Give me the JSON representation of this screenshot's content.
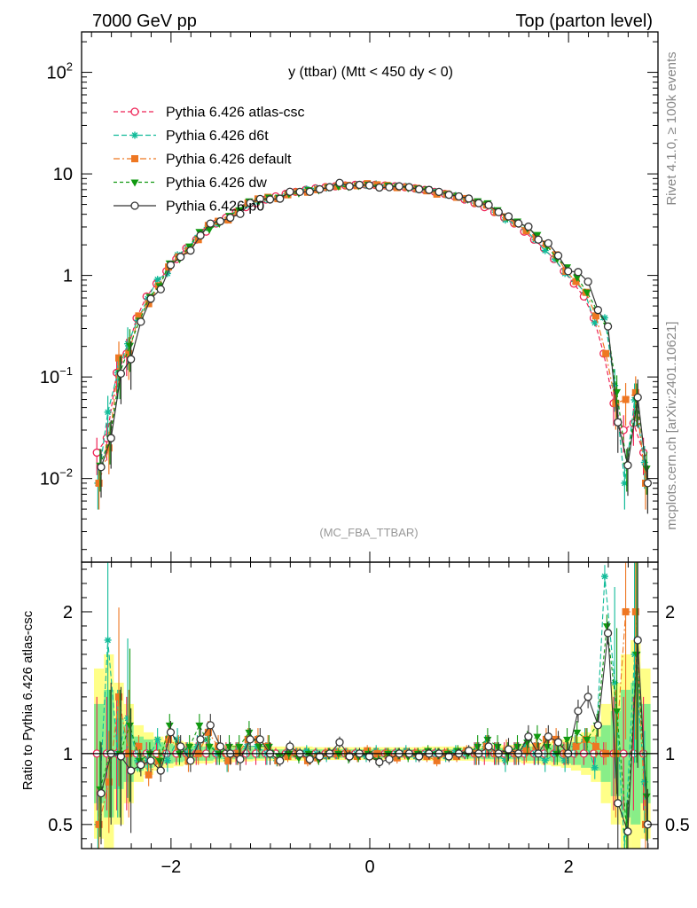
{
  "header": {
    "left": "7000 GeV pp",
    "right": "Top (parton level)"
  },
  "side": {
    "rivet": "Rivet 4.1.0, ≥ 100k events",
    "mcplots": "mcplots.cern.ch [arXiv:2401.10621]"
  },
  "plot_title": "y (ttbar) (Mtt < 450 dy < 0)",
  "watermark": "(MC_FBA_TTBAR)",
  "ratio_ylabel": "Ratio to Pythia 6.426 atlas-csc",
  "colors": {
    "atlas_csc": "#ee2255",
    "d6t": "#11bb99",
    "default": "#ee7722",
    "dw": "#119911",
    "p0": "#333333",
    "band_yellow": "#ffff88",
    "band_green": "#88ee88"
  },
  "chart_data": {
    "type": "line",
    "x_range": [
      -2.9,
      2.9
    ],
    "main": {
      "yscale": "log",
      "ylim": [
        0.0015,
        250
      ],
      "y_ticks": [
        {
          "value": 0.01,
          "base": "10",
          "exp": "−2"
        },
        {
          "value": 0.1,
          "base": "10",
          "exp": "−1"
        },
        {
          "value": 1,
          "base": "1",
          "exp": ""
        },
        {
          "value": 10,
          "base": "10",
          "exp": ""
        },
        {
          "value": 100,
          "base": "10",
          "exp": "2"
        }
      ]
    },
    "ratio": {
      "ylim": [
        0.33,
        2.35
      ],
      "y_ticks": [
        {
          "value": 0.5,
          "label": "0.5"
        },
        {
          "value": 1,
          "label": "1"
        },
        {
          "value": 2,
          "label": "2"
        }
      ]
    },
    "x_ticks": [
      {
        "value": -2,
        "label": "−2"
      },
      {
        "value": 0,
        "label": "0"
      },
      {
        "value": 2,
        "label": "2"
      }
    ],
    "x": [
      -2.725,
      -2.625,
      -2.525,
      -2.425,
      -2.325,
      -2.225,
      -2.125,
      -2.025,
      -1.925,
      -1.825,
      -1.725,
      -1.625,
      -1.525,
      -1.425,
      -1.325,
      -1.225,
      -1.125,
      -1.025,
      -0.925,
      -0.825,
      -0.725,
      -0.625,
      -0.525,
      -0.425,
      -0.325,
      -0.225,
      -0.125,
      -0.025,
      0.075,
      0.175,
      0.275,
      0.375,
      0.475,
      0.575,
      0.675,
      0.775,
      0.875,
      0.975,
      1.075,
      1.175,
      1.275,
      1.375,
      1.475,
      1.575,
      1.675,
      1.775,
      1.875,
      1.975,
      2.075,
      2.175,
      2.275,
      2.375,
      2.475,
      2.575,
      2.675,
      2.775
    ],
    "reference": [
      0.018,
      0.025,
      0.11,
      0.17,
      0.38,
      0.62,
      0.83,
      1.1,
      1.45,
      1.85,
      2.25,
      2.7,
      3.25,
      3.7,
      4.2,
      4.7,
      5.15,
      5.6,
      6.0,
      6.35,
      6.65,
      6.95,
      7.2,
      7.4,
      7.55,
      7.7,
      7.8,
      7.85,
      7.8,
      7.7,
      7.55,
      7.4,
      7.2,
      6.95,
      6.65,
      6.35,
      6.0,
      5.6,
      5.15,
      4.7,
      4.2,
      3.7,
      3.25,
      2.7,
      2.25,
      1.85,
      1.45,
      1.1,
      0.83,
      0.62,
      0.38,
      0.17,
      0.055,
      0.03,
      0.035,
      0.018
    ],
    "series": [
      {
        "name": "Pythia 6.426 atlas-csc",
        "key": "atlas_csc",
        "marker": "circle-open",
        "dash": "5,3",
        "rel_err": 0.4,
        "ratio": [
          1,
          1,
          1,
          1,
          1,
          1,
          1,
          1,
          1,
          1,
          1,
          1,
          1,
          1,
          1,
          1,
          1,
          1,
          1,
          1,
          1,
          1,
          1,
          1,
          1,
          1,
          1,
          1,
          1,
          1,
          1,
          1,
          1,
          1,
          1,
          1,
          1,
          1,
          1,
          1,
          1,
          1,
          1,
          1,
          1,
          1,
          1,
          1,
          1,
          1,
          1,
          1,
          1,
          1,
          1,
          1
        ]
      },
      {
        "name": "Pythia 6.426 d6t",
        "key": "d6t",
        "marker": "star",
        "dash": "6,3",
        "rel_err": 0.45,
        "ratio": [
          0.5,
          1.8,
          1.0,
          1.25,
          0.95,
          0.95,
          1.1,
          0.95,
          1.1,
          1.0,
          1.05,
          1.1,
          1.0,
          0.95,
          1.0,
          1.05,
          1.05,
          1.0,
          0.95,
          1.0,
          1.0,
          1.02,
          1.0,
          0.98,
          1.0,
          1.0,
          1.0,
          0.98,
          1.02,
          1.0,
          1.0,
          1.02,
          0.98,
          1.0,
          1.0,
          0.98,
          1.02,
          1.0,
          1.0,
          1.05,
          1.0,
          0.95,
          1.0,
          1.05,
          1.0,
          0.95,
          1.0,
          0.95,
          1.05,
          1.1,
          0.9,
          2.25,
          1.5,
          0.3,
          1.7,
          0.8
        ]
      },
      {
        "name": "Pythia 6.426 default",
        "key": "default",
        "marker": "square",
        "dash": "7,3,2,3",
        "rel_err": 0.45,
        "ratio": [
          0.5,
          0.8,
          1.4,
          1.0,
          1.05,
          0.85,
          0.95,
          1.1,
          1.05,
          0.95,
          1.0,
          1.15,
          1.05,
          0.95,
          1.0,
          1.1,
          1.1,
          1.05,
          0.95,
          0.98,
          1.0,
          0.95,
          0.97,
          1.0,
          1.0,
          1.0,
          0.98,
          1.02,
          1.0,
          1.0,
          0.97,
          1.0,
          1.0,
          0.98,
          0.95,
          1.0,
          0.98,
          1.02,
          1.0,
          1.05,
          1.0,
          1.02,
          1.0,
          1.02,
          1.05,
          1.1,
          1.1,
          1.0,
          1.05,
          1.1,
          1.05,
          1.0,
          1.0,
          2.0,
          2.0,
          0.5
        ]
      },
      {
        "name": "Pythia 6.426 dw",
        "key": "dw",
        "marker": "triangle-down",
        "dash": "4,3",
        "rel_err": 0.45,
        "ratio": [
          0.75,
          1.0,
          1.0,
          1.2,
          0.95,
          1.0,
          0.95,
          1.2,
          1.0,
          1.05,
          1.2,
          1.05,
          1.0,
          1.05,
          1.05,
          1.15,
          1.05,
          1.05,
          0.98,
          1.0,
          0.97,
          1.0,
          0.96,
          1.0,
          1.0,
          0.97,
          0.98,
          1.0,
          0.95,
          1.0,
          1.0,
          0.98,
          1.0,
          1.02,
          1.0,
          1.0,
          1.02,
          1.0,
          1.05,
          1.1,
          1.05,
          1.0,
          1.05,
          1.08,
          1.12,
          1.05,
          1.0,
          1.1,
          1.15,
          1.1,
          1.2,
          1.9,
          1.3,
          0.45,
          1.7,
          0.7
        ]
      },
      {
        "name": "Pythia 6.426 p0",
        "key": "p0",
        "marker": "circle-open",
        "dash": "",
        "rel_err": 0.5,
        "ratio": [
          0.72,
          1.0,
          0.98,
          0.88,
          0.92,
          0.95,
          0.88,
          1.15,
          1.05,
          0.95,
          1.1,
          1.2,
          1.05,
          1.0,
          0.96,
          1.1,
          1.1,
          1.0,
          0.95,
          1.05,
          1.0,
          0.96,
          0.98,
          1.0,
          1.08,
          0.98,
          1.0,
          0.98,
          0.94,
          0.96,
          1.0,
          1.0,
          0.98,
          1.0,
          1.0,
          0.98,
          1.0,
          1.02,
          1.0,
          1.05,
          1.0,
          1.03,
          1.0,
          1.12,
          1.0,
          1.12,
          1.08,
          1.0,
          1.3,
          1.4,
          1.2,
          1.85,
          0.65,
          0.45,
          1.8,
          0.5
        ]
      }
    ],
    "band_inner": [
      0.35,
      0.45,
      0.25,
      0.2,
      0.12,
      0.1,
      0.08,
      0.07,
      0.06,
      0.05,
      0.05,
      0.05,
      0.04,
      0.04,
      0.04,
      0.04,
      0.035,
      0.035,
      0.03,
      0.03,
      0.03,
      0.03,
      0.03,
      0.03,
      0.03,
      0.03,
      0.03,
      0.03,
      0.03,
      0.03,
      0.03,
      0.03,
      0.03,
      0.03,
      0.03,
      0.03,
      0.03,
      0.035,
      0.035,
      0.04,
      0.04,
      0.04,
      0.04,
      0.05,
      0.05,
      0.05,
      0.06,
      0.07,
      0.08,
      0.1,
      0.12,
      0.2,
      0.3,
      0.45,
      0.5,
      0.35
    ],
    "band_outer": [
      0.6,
      0.7,
      0.5,
      0.35,
      0.2,
      0.15,
      0.12,
      0.1,
      0.09,
      0.08,
      0.07,
      0.07,
      0.06,
      0.06,
      0.06,
      0.055,
      0.05,
      0.05,
      0.05,
      0.05,
      0.05,
      0.05,
      0.045,
      0.045,
      0.045,
      0.045,
      0.045,
      0.045,
      0.045,
      0.045,
      0.045,
      0.045,
      0.045,
      0.05,
      0.05,
      0.05,
      0.05,
      0.05,
      0.05,
      0.055,
      0.06,
      0.06,
      0.06,
      0.07,
      0.07,
      0.08,
      0.09,
      0.1,
      0.12,
      0.15,
      0.2,
      0.35,
      0.5,
      0.7,
      0.8,
      0.6
    ]
  }
}
